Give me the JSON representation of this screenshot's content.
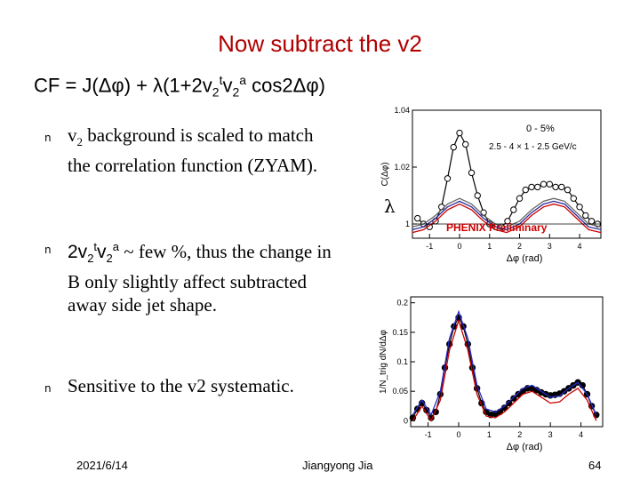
{
  "slide": {
    "title": "Now subtract the v2",
    "formula": {
      "part1": "CF = J(",
      "delta_phi_1": "Δφ",
      "part2": ") + ",
      "lambda": "λ",
      "part3": "(1+2v",
      "sub1": "2",
      "sup1": "t",
      "part4": "v",
      "sub2": "2",
      "sup2": "a",
      "part5": " cos2",
      "delta_phi_2": "Δφ",
      "part6": ")"
    },
    "bullets": [
      {
        "marker": "n",
        "v": "v",
        "sub": "2",
        "text": " background is scaled to match the correlation function  (ZYAM)."
      },
      {
        "marker": "n",
        "pre": "2v",
        "sub1": "2",
        "sup1": "t",
        "mid": "v",
        "sub2": "2",
        "sup2": "a",
        "text": " ~ few %, thus the change in B only slightly affect subtracted away side jet shape."
      },
      {
        "marker": "n",
        "text": "Sensitive to the v2 systematic."
      }
    ],
    "lambda_label": "λ",
    "footer": {
      "date": "2021/6/14",
      "author": "Jiangyong Jia",
      "page": "64"
    }
  },
  "chart_data": [
    {
      "type": "line",
      "ylabel": "C(Δφ)",
      "xlabel": "Δφ (rad)",
      "annotations": [
        "0 - 5%",
        "2.5 - 4 × 1 - 2.5 GeV/c",
        "PHENIX Preliminary"
      ],
      "xlim": [
        -1.57,
        4.71
      ],
      "ylim": [
        0.995,
        1.04
      ],
      "yticks": [
        "1.04",
        "1.02",
        "1"
      ],
      "xticks": [
        "-1",
        "0",
        "1",
        "2",
        "3",
        "4"
      ],
      "series": [
        {
          "role": "data",
          "color": "#000000",
          "x": [
            -1.4,
            -1.2,
            -1.0,
            -0.8,
            -0.6,
            -0.4,
            -0.2,
            0.0,
            0.2,
            0.4,
            0.6,
            0.8,
            1.0,
            1.2,
            1.4,
            1.6,
            1.8,
            2.0,
            2.2,
            2.4,
            2.6,
            2.8,
            3.0,
            3.2,
            3.4,
            3.6,
            3.8,
            4.0,
            4.2,
            4.4,
            4.6
          ],
          "y": [
            1.002,
            1.0,
            0.999,
            1.001,
            1.006,
            1.016,
            1.027,
            1.032,
            1.028,
            1.018,
            1.01,
            1.004,
            1.0,
            0.999,
            0.999,
            1.001,
            1.005,
            1.009,
            1.012,
            1.013,
            1.013,
            1.014,
            1.014,
            1.013,
            1.013,
            1.012,
            1.009,
            1.006,
            1.003,
            1.001,
            1.0
          ]
        },
        {
          "role": "v2 background",
          "color": "#cc0000",
          "x": [
            -1.57,
            -1.2,
            -0.8,
            -0.4,
            0.0,
            0.4,
            0.8,
            1.2,
            1.57,
            2.0,
            2.4,
            2.8,
            3.14,
            3.5,
            3.9,
            4.3,
            4.71
          ],
          "y": [
            0.997,
            0.998,
            1.001,
            1.005,
            1.007,
            1.005,
            1.001,
            0.998,
            0.997,
            0.999,
            1.003,
            1.006,
            1.007,
            1.006,
            1.002,
            0.998,
            0.997
          ]
        },
        {
          "role": "v2 background",
          "color": "#2a2a99",
          "x": [
            -1.57,
            -1.2,
            -0.8,
            -0.4,
            0.0,
            0.4,
            0.8,
            1.2,
            1.57,
            2.0,
            2.4,
            2.8,
            3.14,
            3.5,
            3.9,
            4.3,
            4.71
          ],
          "y": [
            0.998,
            0.999,
            1.002,
            1.006,
            1.008,
            1.006,
            1.002,
            0.999,
            0.998,
            1.0,
            1.004,
            1.007,
            1.008,
            1.007,
            1.003,
            0.999,
            0.998
          ]
        },
        {
          "role": "v2 background",
          "color": "#666666",
          "x": [
            -1.57,
            -1.2,
            -0.8,
            -0.4,
            0.0,
            0.4,
            0.8,
            1.2,
            1.57,
            2.0,
            2.4,
            2.8,
            3.14,
            3.5,
            3.9,
            4.3,
            4.71
          ],
          "y": [
            0.999,
            1.0,
            1.003,
            1.007,
            1.009,
            1.007,
            1.003,
            1.0,
            0.999,
            1.001,
            1.005,
            1.008,
            1.009,
            1.008,
            1.004,
            1.0,
            0.999
          ]
        }
      ]
    },
    {
      "type": "line",
      "ylabel": "1/N_trig dN/dΔφ",
      "xlabel": "Δφ (rad)",
      "xlim": [
        -1.57,
        4.71
      ],
      "ylim": [
        -0.01,
        0.21
      ],
      "yticks": [
        "0.2",
        "0.15",
        "0.1",
        "0.05",
        "0"
      ],
      "xticks": [
        "-1",
        "0",
        "1",
        "2",
        "3",
        "4"
      ],
      "series": [
        {
          "role": "data",
          "color": "#000000",
          "x": [
            -1.5,
            -1.35,
            -1.2,
            -1.05,
            -0.9,
            -0.75,
            -0.6,
            -0.45,
            -0.3,
            -0.15,
            0.0,
            0.15,
            0.3,
            0.45,
            0.6,
            0.75,
            0.9,
            1.05,
            1.2,
            1.35,
            1.5,
            1.65,
            1.8,
            1.95,
            2.1,
            2.25,
            2.4,
            2.55,
            2.7,
            2.85,
            3.0,
            3.15,
            3.3,
            3.45,
            3.6,
            3.75,
            3.9,
            4.05,
            4.2,
            4.35,
            4.5
          ],
          "y": [
            0.005,
            0.02,
            0.03,
            0.018,
            0.005,
            0.015,
            0.045,
            0.09,
            0.13,
            0.16,
            0.175,
            0.16,
            0.13,
            0.09,
            0.055,
            0.03,
            0.015,
            0.01,
            0.012,
            0.015,
            0.022,
            0.03,
            0.038,
            0.045,
            0.05,
            0.055,
            0.055,
            0.052,
            0.048,
            0.045,
            0.043,
            0.044,
            0.046,
            0.05,
            0.055,
            0.06,
            0.065,
            0.06,
            0.045,
            0.025,
            0.01
          ]
        },
        {
          "role": "fit",
          "color": "#cc0000",
          "x": [
            -1.5,
            -1.2,
            -0.9,
            -0.6,
            -0.3,
            0.0,
            0.3,
            0.6,
            0.9,
            1.2,
            1.5,
            1.8,
            2.1,
            2.4,
            2.7,
            3.0,
            3.3,
            3.6,
            3.9,
            4.2,
            4.5
          ],
          "y": [
            0.0,
            0.025,
            0.0,
            0.035,
            0.12,
            0.17,
            0.12,
            0.045,
            0.008,
            0.005,
            0.015,
            0.03,
            0.045,
            0.05,
            0.04,
            0.03,
            0.032,
            0.045,
            0.055,
            0.035,
            0.0
          ]
        },
        {
          "role": "fit",
          "color": "#2a2acc",
          "x": [
            -1.5,
            -1.2,
            -0.9,
            -0.6,
            -0.3,
            0.0,
            0.3,
            0.6,
            0.9,
            1.2,
            1.5,
            1.8,
            2.1,
            2.4,
            2.7,
            3.0,
            3.3,
            3.6,
            3.9,
            4.2,
            4.5
          ],
          "y": [
            0.01,
            0.035,
            0.01,
            0.05,
            0.14,
            0.185,
            0.14,
            0.06,
            0.02,
            0.015,
            0.025,
            0.04,
            0.055,
            0.06,
            0.05,
            0.04,
            0.042,
            0.055,
            0.065,
            0.045,
            0.01
          ]
        }
      ]
    }
  ]
}
